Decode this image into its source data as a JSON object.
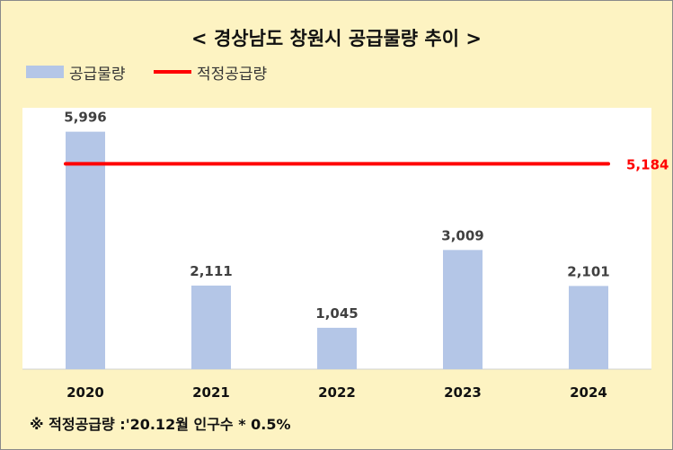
{
  "title": "< 경상남도 창원시 공급물량 추이 >",
  "legend": {
    "bar_label": "공급물량",
    "line_label": "적정공급량"
  },
  "colors": {
    "bar": "#b4c6e7",
    "line": "#ff0000",
    "background": "#fdf3c2",
    "plot": "#ffffff"
  },
  "footnote": "※ 적정공급량 :'20.12월 인구수 * 0.5%",
  "chart_data": {
    "type": "bar",
    "categories": [
      "2020",
      "2021",
      "2022",
      "2023",
      "2024"
    ],
    "series": [
      {
        "name": "공급물량",
        "type": "bar",
        "values": [
          5996,
          2111,
          1045,
          3009,
          2101
        ]
      },
      {
        "name": "적정공급량",
        "type": "line",
        "values": [
          5184,
          5184,
          5184,
          5184,
          5184
        ]
      }
    ],
    "data_labels": [
      "5,996",
      "2,111",
      "1,045",
      "3,009",
      "2,101"
    ],
    "line_label": "5,184",
    "ylim": [
      0,
      6600
    ],
    "grid": false,
    "legend_position": "top-left"
  }
}
